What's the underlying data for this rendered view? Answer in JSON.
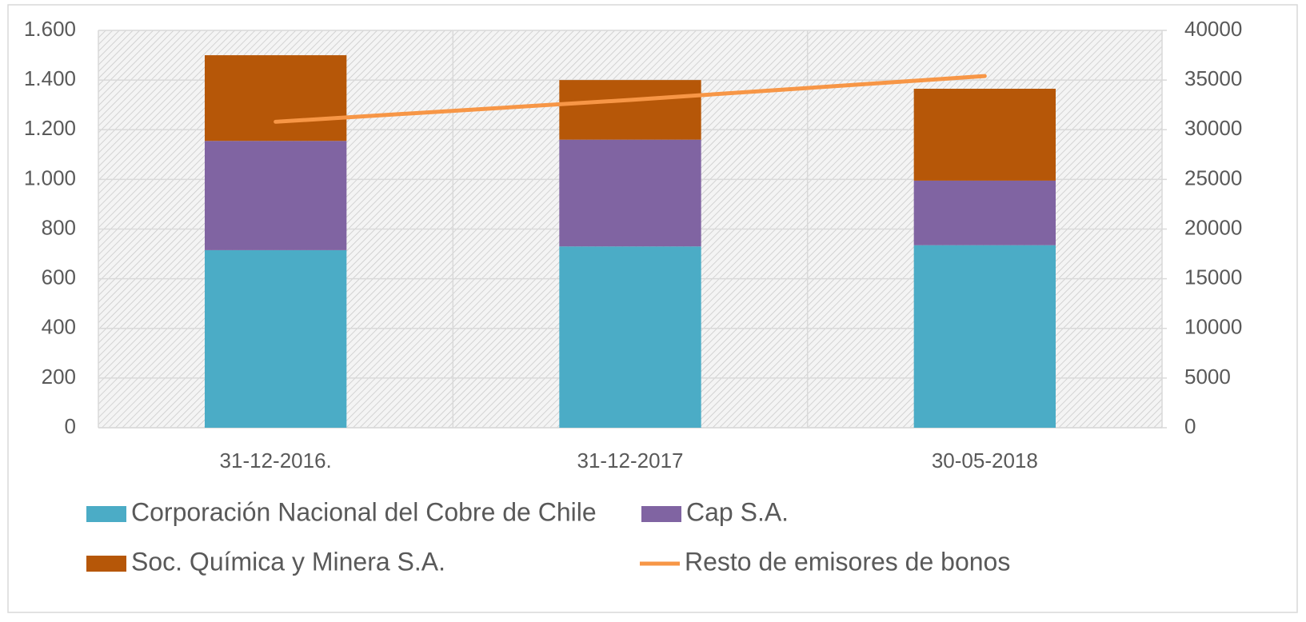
{
  "chart_data": {
    "type": "bar",
    "stacked": true,
    "categories": [
      "31-12-2016.",
      "31-12-2017",
      "30-05-2018"
    ],
    "series": [
      {
        "name": "Corporación Nacional del Cobre de Chile",
        "color": "#4bacc6",
        "values": [
          715,
          730,
          735
        ]
      },
      {
        "name": "Cap S.A.",
        "color": "#8064a2",
        "values": [
          440,
          430,
          260
        ]
      },
      {
        "name": "Soc. Química y Minera S.A.",
        "color": "#b65708",
        "values": [
          345,
          240,
          370
        ]
      },
      {
        "name": "Resto de emisores de bonos",
        "color": "#f79646",
        "type": "line",
        "axis": "y2",
        "values": [
          30800,
          33000,
          35400
        ]
      }
    ],
    "ylim": [
      0,
      1600
    ],
    "yticks": [
      0,
      200,
      400,
      600,
      800,
      {
        "value": 1000,
        "label": "1.000"
      },
      {
        "value": 1200,
        "label": "1.200"
      },
      {
        "value": 1400,
        "label": "1.400"
      },
      {
        "value": 1600,
        "label": "1.600"
      }
    ],
    "y2lim": [
      0,
      40000
    ],
    "y2ticks": [
      0,
      5000,
      10000,
      15000,
      20000,
      25000,
      30000,
      35000,
      40000
    ],
    "grid": true,
    "legend": "bottom"
  }
}
